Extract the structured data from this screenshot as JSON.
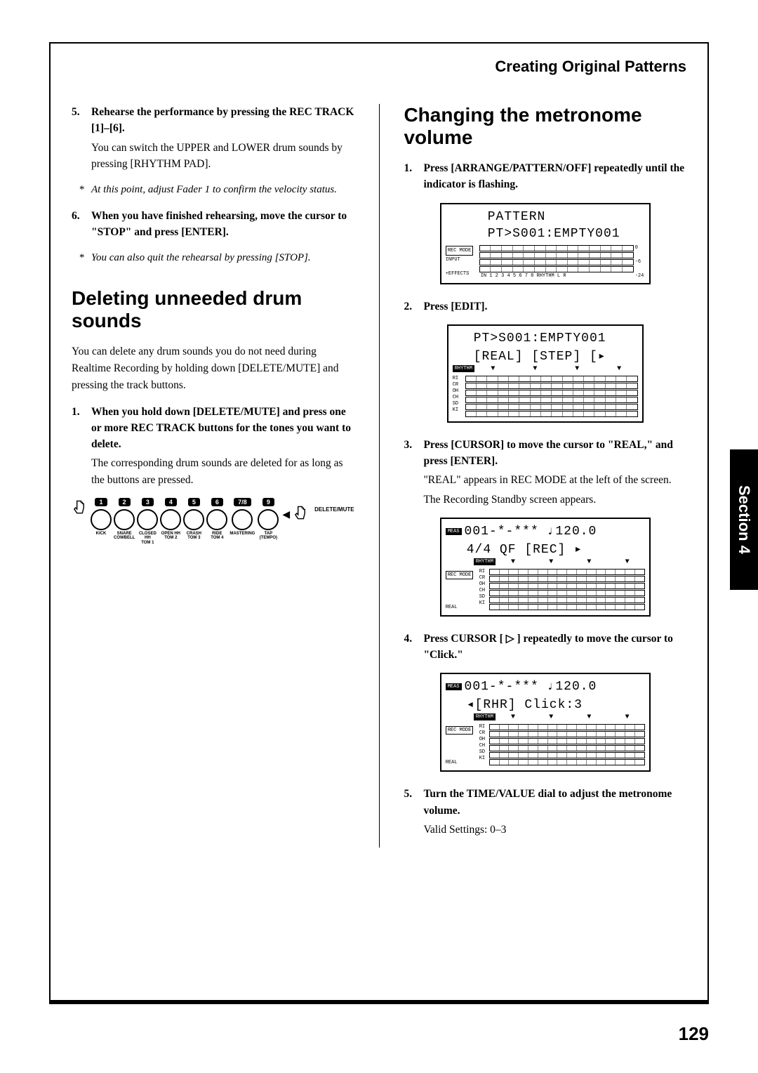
{
  "header": {
    "title": "Creating Original Patterns"
  },
  "sideTab": "Section 4",
  "pageNumber": "129",
  "left": {
    "step5": {
      "num": "5.",
      "bold": "Rehearse the performance by pressing the REC TRACK [1]–[6].",
      "normal": "You can switch the UPPER and LOWER drum sounds by pressing [RHYTHM PAD]."
    },
    "note1": "At this point, adjust Fader 1 to confirm the velocity status.",
    "step6": {
      "num": "6.",
      "bold": "When you have finished rehearsing, move the cursor to \"STOP\" and press [ENTER]."
    },
    "note2": "You can also quit the rehearsal by pressing [STOP].",
    "h2a": "Deleting unneeded drum sounds",
    "bodyA": "You can delete any drum sounds you do not need during Realtime Recording by holding down [DELETE/MUTE] and pressing the track buttons.",
    "step1a": {
      "num": "1.",
      "bold": "When you hold down [DELETE/MUTE] and press one or more REC TRACK buttons for the tones you want to delete.",
      "normal": " The corresponding drum sounds are deleted for as long as the buttons are pressed."
    },
    "pads": [
      {
        "n": "1",
        "l": "KICK"
      },
      {
        "n": "2",
        "l": "SNARE\nCOWBELL"
      },
      {
        "n": "3",
        "l": "CLOSED HH\nTOM 1"
      },
      {
        "n": "4",
        "l": "OPEN HH\nTOM 2"
      },
      {
        "n": "5",
        "l": "CRASH\nTOM 3"
      },
      {
        "n": "6",
        "l": "RIDE\nTOM 4"
      },
      {
        "n": "7/8",
        "l": "MASTERING"
      },
      {
        "n": "9",
        "l": "TAP (TEMPO)"
      }
    ],
    "deleteMute": "DELETE/MUTE"
  },
  "right": {
    "h2b": "Changing the metronome volume",
    "step1b": {
      "num": "1.",
      "bold": "Press [ARRANGE/PATTERN/OFF] repeatedly until the indicator is flashing."
    },
    "lcd1": {
      "line1": "PATTERN",
      "line2": "PT>S001:EMPTY001",
      "leftLabels": [
        "REC MODE",
        "INPUT",
        "+EFFECTS"
      ],
      "scale": "IN    1  2  3  4  5  6  7  8  RHYTHM    L   R",
      "right": [
        "0",
        "-6",
        "-24"
      ]
    },
    "step2b": {
      "num": "2.",
      "bold": "Press [EDIT]."
    },
    "lcd2": {
      "line1": "PT>S001:EMPTY001",
      "line2": "[REAL]  [STEP]  [▸",
      "rhythm": "RHYTHM",
      "rows": [
        "RI",
        "CR",
        "OH",
        "CH",
        "SD",
        "KI"
      ]
    },
    "step3b": {
      "num": "3.",
      "bold": "Press [CURSOR] to move the cursor to \"REAL,\" and press [ENTER].",
      "normal1": "\"REAL\" appears in REC MODE at the left of the screen.",
      "normal2": "The Recording Standby screen appears."
    },
    "lcd3": {
      "meas": "MEAS",
      "line1": "001-*-*** ♩120.0",
      "line2": " 4/4   QF   [REC] ▸",
      "rhythm": "RHYTHM",
      "recmode": "REC MODE",
      "real": "REAL",
      "rows": [
        "RI",
        "CR",
        "OH",
        "CH",
        "SD",
        "KI"
      ]
    },
    "step4b": {
      "num": "4.",
      "bold": "Press CURSOR [ ▷ ] repeatedly to move the cursor to \"Click.\""
    },
    "lcd4": {
      "meas": "MEAS",
      "line1": "001-*-*** ♩120.0",
      "line2": " ◂[RHR]  Click:3",
      "rhythm": "RHYTHM",
      "recmode": "REC MODE",
      "real": "REAL",
      "rows": [
        "RI",
        "CR",
        "OH",
        "CH",
        "SD",
        "KI"
      ]
    },
    "step5b": {
      "num": "5.",
      "bold": "Turn the TIME/VALUE dial to adjust the metronome volume.",
      "normal": "Valid Settings: 0–3"
    }
  }
}
